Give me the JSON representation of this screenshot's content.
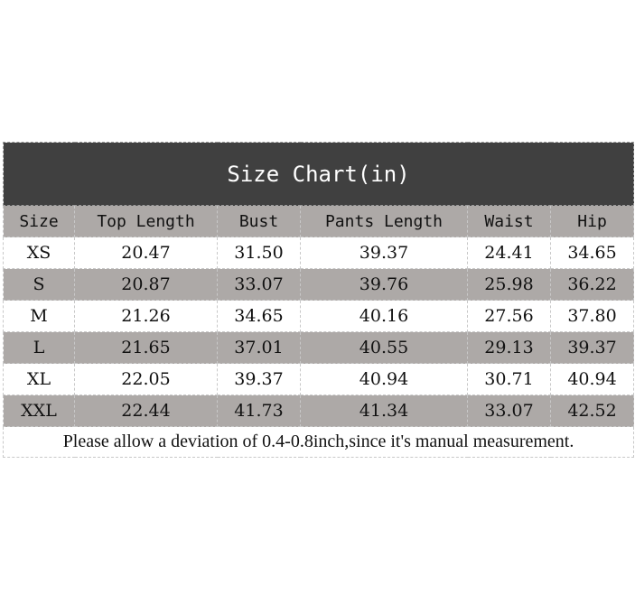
{
  "title": "Size Chart(in)",
  "columns": [
    "Size",
    "Top Length",
    "Bust",
    "Pants Length",
    "Waist",
    "Hip"
  ],
  "rows": [
    [
      "XS",
      "20.47",
      "31.50",
      "39.37",
      "24.41",
      "34.65"
    ],
    [
      "S",
      "20.87",
      "33.07",
      "39.76",
      "25.98",
      "36.22"
    ],
    [
      "M",
      "21.26",
      "34.65",
      "40.16",
      "27.56",
      "37.80"
    ],
    [
      "L",
      "21.65",
      "37.01",
      "40.55",
      "29.13",
      "39.37"
    ],
    [
      "XL",
      "22.05",
      "39.37",
      "40.94",
      "30.71",
      "40.94"
    ],
    [
      "XXL",
      "22.44",
      "41.73",
      "41.34",
      "33.07",
      "42.52"
    ]
  ],
  "note": "Please allow a deviation of 0.4-0.8inch,since it's manual measurement.",
  "colors": {
    "title_bg": "#404040",
    "stripe": "#ada9a7"
  }
}
